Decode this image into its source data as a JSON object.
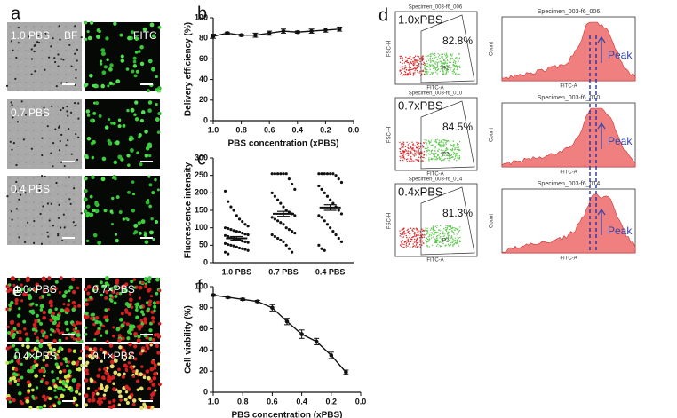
{
  "panel_labels": [
    "a",
    "b",
    "c",
    "d",
    "e",
    "f"
  ],
  "panel_a": {
    "columns": [
      "BF",
      "FITC"
    ],
    "rows": [
      "1.0 PBS",
      "0.7 PBS",
      "0.4 PBS"
    ]
  },
  "panel_d": {
    "rows": [
      {
        "condition": "1.0xPBS",
        "specimen": "Specimen_003-f6_006",
        "gate_percent": "82.8%",
        "gate": "P2"
      },
      {
        "condition": "0.7xPBS",
        "specimen": "Specimen_003-f6_010",
        "gate_percent": "84.5%",
        "gate": "P2"
      },
      {
        "condition": "0.4xPBS",
        "specimen": "Specimen_003-f6_014",
        "gate_percent": "81.3%",
        "gate": "P2"
      }
    ],
    "x_label": "FITC-A",
    "scatter_y_label": "FSC-H",
    "hist_y_label": "Count",
    "peak_label": "Peak"
  },
  "panel_e": {
    "labels": [
      "1.0×PBS",
      "0.7×PBS",
      "0.4×PBS",
      "0.1×PBS"
    ]
  },
  "chart_data": [
    {
      "type": "line",
      "x_label": "PBS concentration (xPBS)",
      "y_label": "Delivery efficiency (%)",
      "x": [
        1.0,
        0.9,
        0.8,
        0.7,
        0.6,
        0.5,
        0.4,
        0.3,
        0.2,
        0.1
      ],
      "values": [
        82,
        85,
        83,
        83,
        85,
        87,
        86,
        87,
        88,
        89
      ],
      "errors": [
        2,
        1,
        1,
        2,
        2,
        2,
        1,
        2,
        2,
        2
      ],
      "color": "#111111",
      "xlim": [
        1,
        0
      ],
      "xticks": [
        {
          "value": 1,
          "label": "1.0"
        },
        0.8,
        0.6,
        0.4,
        0.2,
        {
          "value": 0,
          "label": "0.0"
        }
      ],
      "ylim": [
        0,
        100
      ],
      "yticks": [
        0,
        20,
        40,
        60,
        80,
        100
      ]
    },
    {
      "type": "dot",
      "y_label": "Fluorescence intensity",
      "categories": [
        "1.0 PBS",
        "0.7 PBS",
        "0.4 PBS"
      ],
      "values": [
        [
          205,
          175,
          160,
          150,
          135,
          125,
          118,
          110,
          105,
          100,
          98,
          95,
          92,
          90,
          88,
          85,
          82,
          80,
          78,
          75,
          72,
          70,
          68,
          65,
          62,
          60,
          58,
          55,
          52,
          50,
          48,
          45,
          42,
          40,
          38,
          35,
          30,
          25
        ],
        [
          255,
          255,
          255,
          255,
          255,
          255,
          240,
          225,
          210,
          200,
          190,
          180,
          170,
          160,
          150,
          145,
          140,
          135,
          130,
          125,
          120,
          115,
          110,
          100,
          95,
          90,
          85,
          80,
          75,
          70,
          65,
          60,
          50,
          40,
          30
        ],
        [
          255,
          255,
          255,
          255,
          255,
          255,
          250,
          240,
          230,
          220,
          210,
          200,
          190,
          180,
          170,
          160,
          150,
          140,
          135,
          130,
          120,
          110,
          100,
          90,
          80,
          70,
          60,
          50,
          40,
          35
        ]
      ],
      "means": [
        70,
        140,
        158
      ],
      "errors": [
        5,
        7,
        8
      ],
      "color": "#111111",
      "ylim": [
        0,
        300
      ],
      "yticks": [
        0,
        50,
        100,
        150,
        200,
        250,
        300
      ]
    },
    {
      "type": "line",
      "x_label": "PBS concentration (xPBS)",
      "y_label": "Cell viability (%)",
      "x": [
        1.0,
        0.9,
        0.8,
        0.7,
        0.6,
        0.5,
        0.4,
        0.3,
        0.2,
        0.1
      ],
      "values": [
        92,
        90,
        88,
        86,
        80,
        67,
        55,
        48,
        35,
        19
      ],
      "errors": [
        1,
        1,
        1,
        1,
        3,
        3,
        4,
        3,
        3,
        2
      ],
      "color": "#111111",
      "xlim": [
        1,
        0
      ],
      "xticks": [
        {
          "value": 1,
          "label": "1.0"
        },
        0.8,
        0.6,
        0.4,
        0.2,
        {
          "value": 0,
          "label": "0.0"
        }
      ],
      "ylim": [
        0,
        100
      ],
      "yticks": [
        0,
        20,
        40,
        60,
        80,
        100
      ]
    }
  ]
}
